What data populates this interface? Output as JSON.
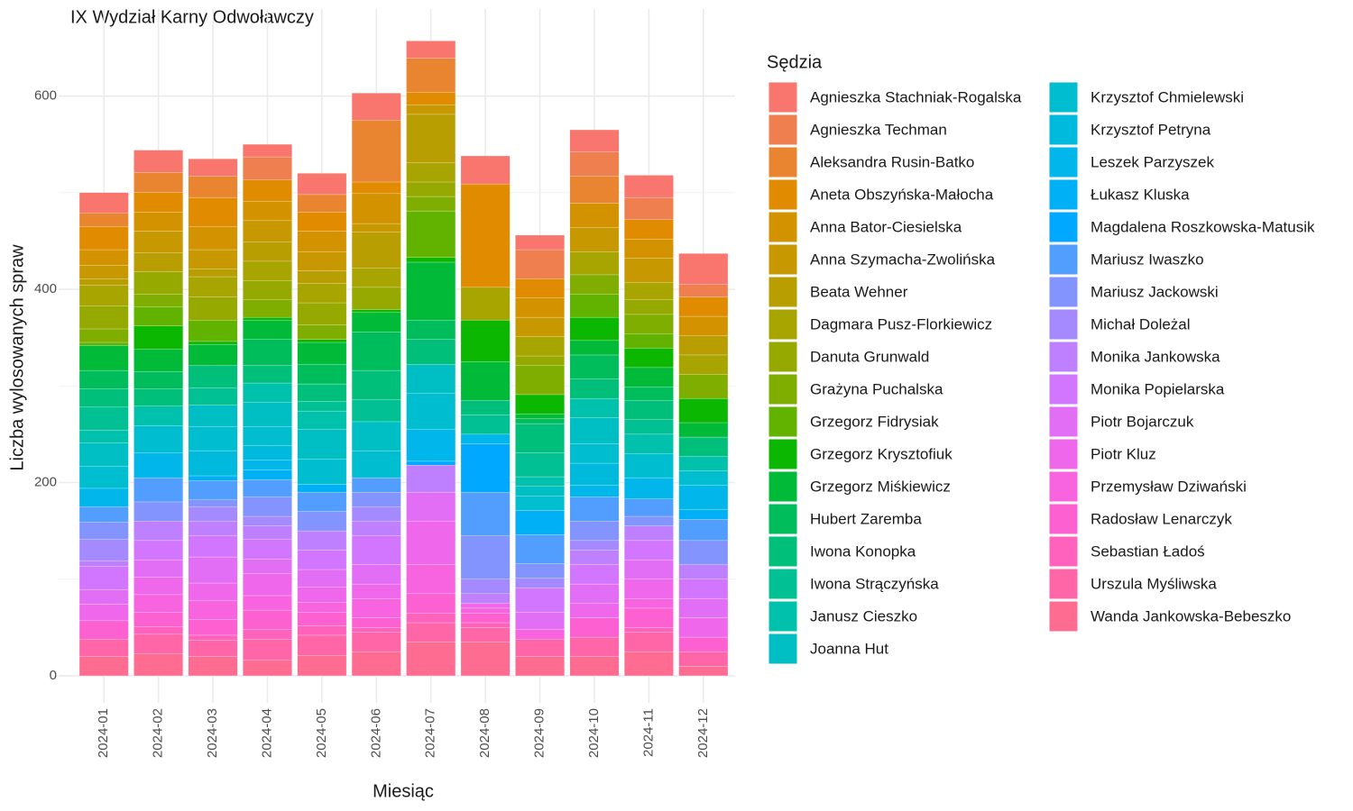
{
  "chart_data": {
    "type": "stacked_bar",
    "title": "IX Wydział Karny Odwoławczy",
    "x_label": "Miesiąc",
    "y_label": "Liczba wylosowanych spraw",
    "legend_title": "Sędzia",
    "legend_position": "right",
    "grid": true,
    "categories": [
      "2024-01",
      "2024-02",
      "2024-03",
      "2024-04",
      "2024-05",
      "2024-06",
      "2024-07",
      "2024-08",
      "2024-09",
      "2024-10",
      "2024-11",
      "2024-12"
    ],
    "ylim": [
      -28,
      690
    ],
    "yticks": [
      0,
      200,
      400,
      600
    ],
    "y_minor_ticks": [
      100,
      300,
      500
    ],
    "series": [
      {
        "name": "Agnieszka Stachniak-Rogalska",
        "color": "#F8766D",
        "values": [
          21,
          23,
          18,
          13,
          22,
          28,
          18,
          29,
          15,
          23,
          23,
          32
        ]
      },
      {
        "name": "Agnieszka Techman",
        "color": "#F07F4F",
        "values": [
          0,
          0,
          0,
          24,
          0,
          0,
          0,
          0,
          30,
          25,
          23,
          13
        ]
      },
      {
        "name": "Aleksandra Rusin-Batko",
        "color": "#E98530",
        "values": [
          14,
          21,
          22,
          0,
          18,
          64,
          35,
          0,
          0,
          28,
          0,
          0
        ]
      },
      {
        "name": "Aneta Obszyńska-Małocha",
        "color": "#E08B00",
        "values": [
          24,
          20,
          30,
          22,
          20,
          12,
          13,
          107,
          20,
          0,
          20,
          20
        ]
      },
      {
        "name": "Anna Bator-Ciesielska",
        "color": "#D39200",
        "values": [
          16,
          20,
          24,
          20,
          21,
          31,
          0,
          0,
          20,
          25,
          20,
          20
        ]
      },
      {
        "name": "Anna Szymacha-Zwolińska",
        "color": "#C79800",
        "values": [
          14,
          22,
          20,
          22,
          20,
          9,
          10,
          0,
          20,
          25,
          25,
          0
        ]
      },
      {
        "name": "Beata Wehner",
        "color": "#B89E00",
        "values": [
          7,
          20,
          8,
          20,
          13,
          37,
          50,
          0,
          0,
          0,
          0,
          20
        ]
      },
      {
        "name": "Dagmara Pusz-Florkiewicz",
        "color": "#A8A400",
        "values": [
          21,
          0,
          21,
          20,
          20,
          20,
          20,
          34,
          20,
          24,
          18,
          20
        ]
      },
      {
        "name": "Danuta Grunwald",
        "color": "#96A900",
        "values": [
          24,
          23,
          24,
          20,
          23,
          23,
          15,
          0,
          10,
          0,
          15,
          0
        ]
      },
      {
        "name": "Grażyna Puchalska",
        "color": "#7FAE00",
        "values": [
          14,
          13,
          0,
          18,
          15,
          0,
          15,
          0,
          30,
          20,
          20,
          25
        ]
      },
      {
        "name": "Grzegorz Fidrysiak",
        "color": "#62B200",
        "values": [
          3,
          20,
          22,
          0,
          0,
          0,
          48,
          0,
          0,
          24,
          15,
          0
        ]
      },
      {
        "name": "Grzegorz Krysztofiuk",
        "color": "#0CB702",
        "values": [
          0,
          24,
          3,
          3,
          3,
          3,
          5,
          43,
          20,
          24,
          20,
          25
        ]
      },
      {
        "name": "Grzegorz Miśkiewicz",
        "color": "#00BA38",
        "values": [
          26,
          23,
          22,
          20,
          23,
          20,
          60,
          40,
          5,
          15,
          20,
          15
        ]
      },
      {
        "name": "Hubert Zaremba",
        "color": "#00BD5C",
        "values": [
          19,
          18,
          0,
          27,
          20,
          40,
          20,
          0,
          5,
          25,
          14,
          0
        ]
      },
      {
        "name": "Iwona Konopka",
        "color": "#00BF7A",
        "values": [
          19,
          18,
          23,
          18,
          18,
          30,
          26,
          15,
          30,
          20,
          20,
          20
        ]
      },
      {
        "name": "Iwona Strączyńska",
        "color": "#00C094",
        "values": [
          24,
          0,
          18,
          0,
          10,
          23,
          0,
          20,
          25,
          0,
          15,
          0
        ]
      },
      {
        "name": "Janusz Cieszko",
        "color": "#00C1AB",
        "values": [
          13,
          20,
          0,
          20,
          19,
          0,
          0,
          0,
          10,
          20,
          20,
          15
        ]
      },
      {
        "name": "Joanna Hut",
        "color": "#00BFC4",
        "values": [
          24,
          0,
          22,
          25,
          31,
          30,
          30,
          0,
          10,
          27,
          0,
          0
        ]
      },
      {
        "name": "Krzysztof Chmielewski",
        "color": "#00BDD0",
        "values": [
          23,
          28,
          25,
          20,
          26,
          28,
          37,
          0,
          15,
          20,
          25,
          15
        ]
      },
      {
        "name": "Krzysztof Petryna",
        "color": "#00BADE",
        "values": [
          0,
          0,
          26,
          15,
          0,
          0,
          0,
          0,
          0,
          23,
          0,
          0
        ]
      },
      {
        "name": "Leszek Parzyszek",
        "color": "#00B6EB",
        "values": [
          19,
          26,
          0,
          10,
          0,
          0,
          33,
          10,
          0,
          12,
          22,
          25
        ]
      },
      {
        "name": "Łukasz Kluska",
        "color": "#00B0F6",
        "values": [
          0,
          0,
          5,
          10,
          8,
          0,
          0,
          0,
          25,
          0,
          0,
          10
        ]
      },
      {
        "name": "Magdalena Roszkowska-Matusik",
        "color": "#00A9FF",
        "values": [
          0,
          0,
          0,
          0,
          0,
          0,
          4,
          50,
          0,
          0,
          0,
          0
        ]
      },
      {
        "name": "Mariusz Iwaszko",
        "color": "#529EFF",
        "values": [
          16,
          25,
          20,
          18,
          20,
          15,
          0,
          45,
          30,
          25,
          18,
          22
        ]
      },
      {
        "name": "Mariusz Jackowski",
        "color": "#8494FF",
        "values": [
          18,
          20,
          7,
          20,
          20,
          15,
          0,
          45,
          15,
          20,
          10,
          25
        ]
      },
      {
        "name": "Michał Doleżal",
        "color": "#A58AFF",
        "values": [
          22,
          0,
          15,
          10,
          0,
          15,
          0,
          15,
          10,
          10,
          0,
          0
        ]
      },
      {
        "name": "Monika Jankowska",
        "color": "#BF80FF",
        "values": [
          6,
          20,
          15,
          14,
          20,
          15,
          28,
          10,
          0,
          15,
          15,
          15
        ]
      },
      {
        "name": "Monika Popielarska",
        "color": "#D376FF",
        "values": [
          24,
          20,
          22,
          20,
          20,
          30,
          0,
          0,
          25,
          20,
          20,
          20
        ]
      },
      {
        "name": "Piotr Bojarczuk",
        "color": "#E36EF6",
        "values": [
          15,
          18,
          27,
          15,
          18,
          20,
          30,
          0,
          18,
          20,
          20,
          20
        ]
      },
      {
        "name": "Piotr Kluz",
        "color": "#EF67EB",
        "values": [
          17,
          18,
          18,
          23,
          16,
          15,
          45,
          5,
          0,
          15,
          20,
          20
        ]
      },
      {
        "name": "Przemysław Dziwański",
        "color": "#F863DF",
        "values": [
          0,
          18,
          20,
          15,
          10,
          20,
          30,
          5,
          10,
          0,
          10,
          0
        ]
      },
      {
        "name": "Radosław Lenarczyk",
        "color": "#FD61D1",
        "values": [
          19,
          15,
          16,
          20,
          14,
          10,
          20,
          10,
          0,
          20,
          20,
          15
        ]
      },
      {
        "name": "Sebastian Ładoś",
        "color": "#FF62BC",
        "values": [
          0,
          8,
          5,
          10,
          10,
          5,
          10,
          5,
          0,
          0,
          5,
          0
        ]
      },
      {
        "name": "Urszula Myśliwska",
        "color": "#FF66A8",
        "values": [
          18,
          20,
          17,
          22,
          21,
          20,
          20,
          15,
          18,
          20,
          20,
          15
        ]
      },
      {
        "name": "Wanda Jankowska-Bebeszko",
        "color": "#FF6C91",
        "values": [
          20,
          23,
          20,
          16,
          21,
          25,
          35,
          35,
          20,
          20,
          25,
          10
        ]
      }
    ]
  }
}
